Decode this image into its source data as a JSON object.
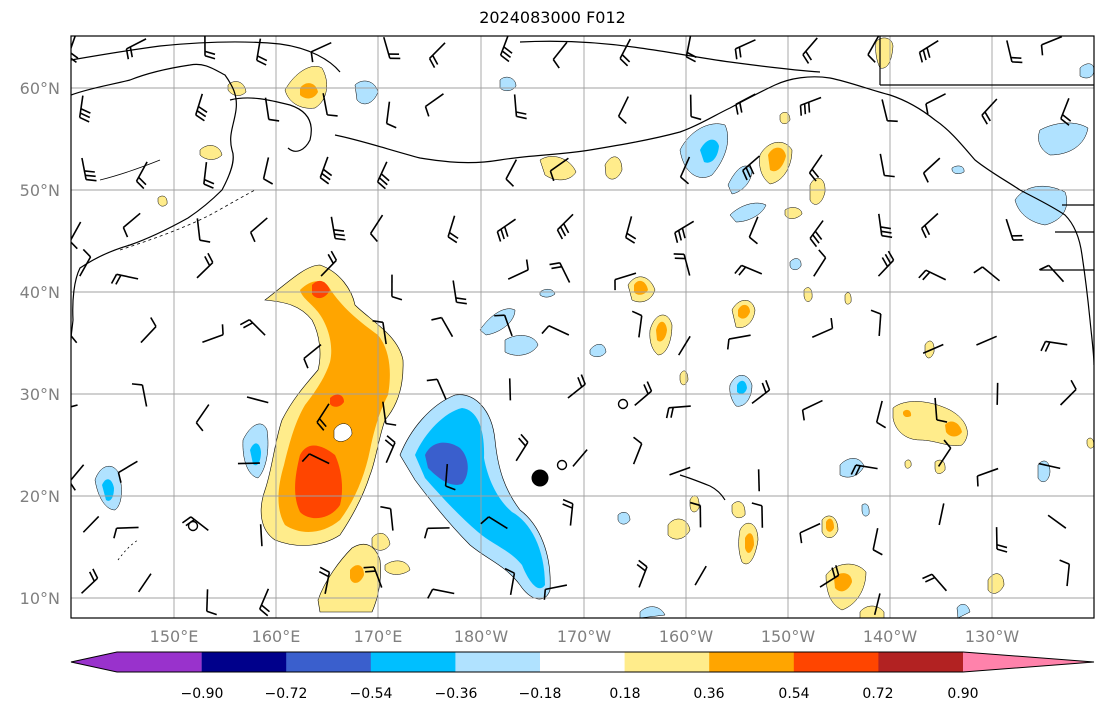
{
  "title": "2024083000 F012",
  "lat_labels": [
    "60°N",
    "50°N",
    "40°N",
    "30°N",
    "20°N",
    "10°N"
  ],
  "lon_labels": [
    "150°E",
    "160°E",
    "170°E",
    "180°W",
    "170°W",
    "160°W",
    "150°W",
    "140°W",
    "130°W"
  ],
  "colorbar": {
    "tick_labels": [
      "−0.90",
      "−0.72",
      "−0.54",
      "−0.36",
      "−0.18",
      "0.18",
      "0.36",
      "0.54",
      "0.72",
      "0.90"
    ],
    "colors": [
      "#9932cc",
      "#00008b",
      "#3a5fcd",
      "#00bfff",
      "#b0e2ff",
      "#ffffff",
      "#ffec8b",
      "#ffa500",
      "#ff4500",
      "#b22222",
      "#ff82ab"
    ]
  },
  "colors": {
    "grid": "#a0a0a0",
    "coast": "#000000",
    "barb": "#000000"
  }
}
